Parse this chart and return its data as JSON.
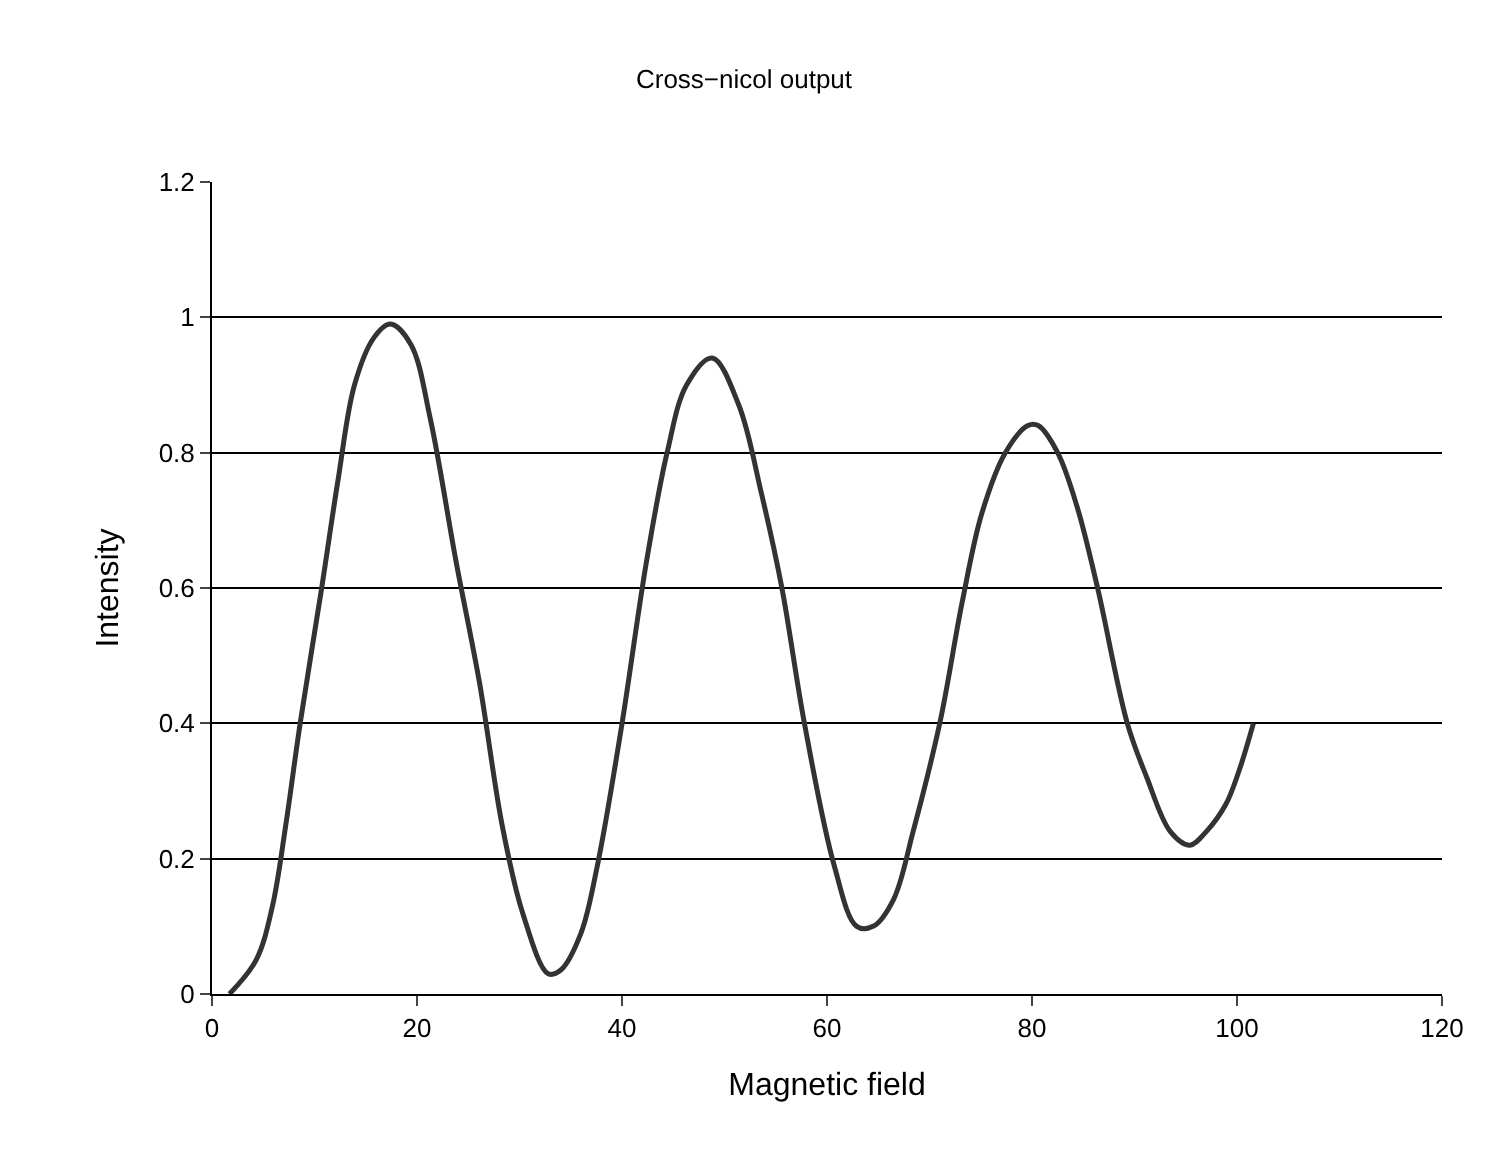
{
  "chart_data": {
    "type": "line",
    "title": "Cross−nicol output",
    "xlabel": "Magnetic field",
    "ylabel": "Intensity",
    "xlim": [
      0,
      120
    ],
    "xticks": [
      0,
      20,
      40,
      60,
      80,
      100,
      120
    ],
    "ylim": [
      0,
      1.2
    ],
    "yticks": [
      0,
      0.2,
      0.4,
      0.6,
      0.8,
      1,
      1.2
    ],
    "grid": "y",
    "legend": false,
    "marker": "none",
    "line_style": "solid",
    "series": [
      {
        "color": "#333333",
        "x": [
          1.7,
          4.3,
          5.9,
          7.2,
          8.6,
          10.7,
          12.3,
          13.9,
          15.8,
          17.4,
          19.4,
          21.3,
          23.8,
          26.1,
          28.3,
          30.3,
          32.8,
          34,
          36,
          37.6,
          39.9,
          42.4,
          44.4,
          46.3,
          48.8,
          51.4,
          53.6,
          55.6,
          57.8,
          60.7,
          62.9,
          64.5,
          66.5,
          68.4,
          71,
          73.2,
          75.1,
          77.4,
          79.6,
          80.6,
          82.5,
          84.4,
          86.4,
          89.3,
          91.2,
          93.5,
          95.4,
          97,
          98.9,
          100.2,
          101.6
        ],
        "values": [
          0,
          0.05,
          0.13,
          0.25,
          0.4,
          0.6,
          0.76,
          0.9,
          0.97,
          0.99,
          0.96,
          0.85,
          0.64,
          0.46,
          0.25,
          0.12,
          0.03,
          0.035,
          0.09,
          0.19,
          0.39,
          0.64,
          0.8,
          0.9,
          0.94,
          0.87,
          0.74,
          0.6,
          0.4,
          0.19,
          0.1,
          0.1,
          0.14,
          0.24,
          0.4,
          0.58,
          0.71,
          0.8,
          0.84,
          0.84,
          0.8,
          0.72,
          0.6,
          0.4,
          0.32,
          0.24,
          0.22,
          0.24,
          0.28,
          0.33,
          0.4
        ]
      }
    ]
  }
}
